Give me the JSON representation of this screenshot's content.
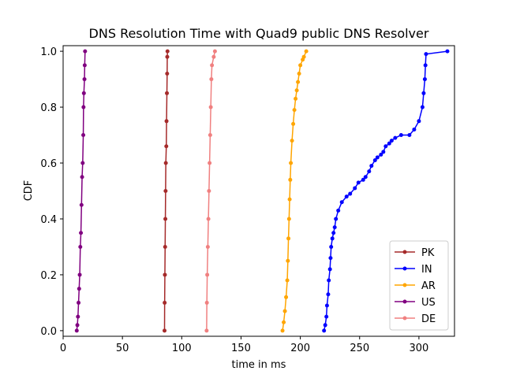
{
  "chart_data": {
    "type": "line",
    "title": "DNS Resolution Time with Quad9 public DNS Resolver",
    "xlabel": "time in ms",
    "ylabel": "CDF",
    "xlim": [
      0,
      330
    ],
    "ylim": [
      -0.02,
      1.02
    ],
    "xticks": [
      0,
      50,
      100,
      150,
      200,
      250,
      300
    ],
    "yticks": [
      0.0,
      0.2,
      0.4,
      0.6,
      0.8,
      1.0
    ],
    "xtick_labels": [
      "0",
      "50",
      "100",
      "150",
      "200",
      "250",
      "300"
    ],
    "ytick_labels": [
      "0.0",
      "0.2",
      "0.4",
      "0.6",
      "0.8",
      "1.0"
    ],
    "grid": false,
    "legend_position": "lower-right",
    "series": [
      {
        "name": "PK",
        "color": "#a52a2a",
        "points": [
          [
            85.5,
            0.0
          ],
          [
            85.6,
            0.1
          ],
          [
            85.8,
            0.2
          ],
          [
            86.0,
            0.3
          ],
          [
            86.2,
            0.4
          ],
          [
            86.4,
            0.5
          ],
          [
            86.6,
            0.6
          ],
          [
            87.0,
            0.66
          ],
          [
            87.2,
            0.75
          ],
          [
            87.5,
            0.85
          ],
          [
            87.7,
            0.92
          ],
          [
            87.8,
            0.98
          ],
          [
            88.0,
            1.0
          ]
        ]
      },
      {
        "name": "IN",
        "color": "#0000ff",
        "points": [
          [
            220,
            0.0
          ],
          [
            221,
            0.02
          ],
          [
            222,
            0.05
          ],
          [
            222.5,
            0.09
          ],
          [
            223.5,
            0.13
          ],
          [
            224,
            0.18
          ],
          [
            225,
            0.22
          ],
          [
            225.5,
            0.26
          ],
          [
            226,
            0.3
          ],
          [
            227,
            0.33
          ],
          [
            228,
            0.35
          ],
          [
            229,
            0.37
          ],
          [
            230,
            0.4
          ],
          [
            232,
            0.43
          ],
          [
            235,
            0.46
          ],
          [
            239,
            0.48
          ],
          [
            242,
            0.49
          ],
          [
            246,
            0.51
          ],
          [
            249,
            0.53
          ],
          [
            253,
            0.54
          ],
          [
            255,
            0.55
          ],
          [
            258,
            0.57
          ],
          [
            260,
            0.59
          ],
          [
            263,
            0.61
          ],
          [
            265,
            0.62
          ],
          [
            268,
            0.63
          ],
          [
            270,
            0.64
          ],
          [
            272,
            0.66
          ],
          [
            275,
            0.67
          ],
          [
            277,
            0.68
          ],
          [
            280,
            0.69
          ],
          [
            285,
            0.7
          ],
          [
            292,
            0.7
          ],
          [
            296,
            0.72
          ],
          [
            300,
            0.75
          ],
          [
            303,
            0.8
          ],
          [
            304,
            0.85
          ],
          [
            305,
            0.9
          ],
          [
            305.5,
            0.95
          ],
          [
            306,
            0.99
          ],
          [
            324,
            1.0
          ]
        ]
      },
      {
        "name": "AR",
        "color": "#ffa500",
        "points": [
          [
            185,
            0.0
          ],
          [
            186,
            0.03
          ],
          [
            187,
            0.07
          ],
          [
            188,
            0.12
          ],
          [
            189,
            0.18
          ],
          [
            189.5,
            0.25
          ],
          [
            190,
            0.33
          ],
          [
            190.5,
            0.4
          ],
          [
            191,
            0.47
          ],
          [
            191.5,
            0.54
          ],
          [
            192,
            0.6
          ],
          [
            193,
            0.68
          ],
          [
            194,
            0.74
          ],
          [
            195,
            0.79
          ],
          [
            196,
            0.83
          ],
          [
            197,
            0.86
          ],
          [
            198,
            0.89
          ],
          [
            199,
            0.92
          ],
          [
            200,
            0.95
          ],
          [
            202,
            0.97
          ],
          [
            203,
            0.98
          ],
          [
            205,
            1.0
          ]
        ]
      },
      {
        "name": "US",
        "color": "#800080",
        "points": [
          [
            11.5,
            0.0
          ],
          [
            12,
            0.02
          ],
          [
            12.5,
            0.05
          ],
          [
            13,
            0.1
          ],
          [
            13.5,
            0.15
          ],
          [
            14,
            0.2
          ],
          [
            14.5,
            0.3
          ],
          [
            15,
            0.35
          ],
          [
            15.5,
            0.45
          ],
          [
            16,
            0.55
          ],
          [
            16.5,
            0.6
          ],
          [
            17,
            0.7
          ],
          [
            17.2,
            0.8
          ],
          [
            17.5,
            0.85
          ],
          [
            18,
            0.9
          ],
          [
            18.2,
            0.95
          ],
          [
            18.5,
            1.0
          ]
        ]
      },
      {
        "name": "DE",
        "color": "#f08080",
        "points": [
          [
            121,
            0.0
          ],
          [
            121.2,
            0.1
          ],
          [
            121.5,
            0.2
          ],
          [
            122,
            0.3
          ],
          [
            122.5,
            0.4
          ],
          [
            123,
            0.5
          ],
          [
            123.5,
            0.6
          ],
          [
            124,
            0.7
          ],
          [
            124.5,
            0.8
          ],
          [
            125,
            0.9
          ],
          [
            125.5,
            0.95
          ],
          [
            127,
            0.98
          ],
          [
            128,
            1.0
          ]
        ]
      }
    ]
  }
}
